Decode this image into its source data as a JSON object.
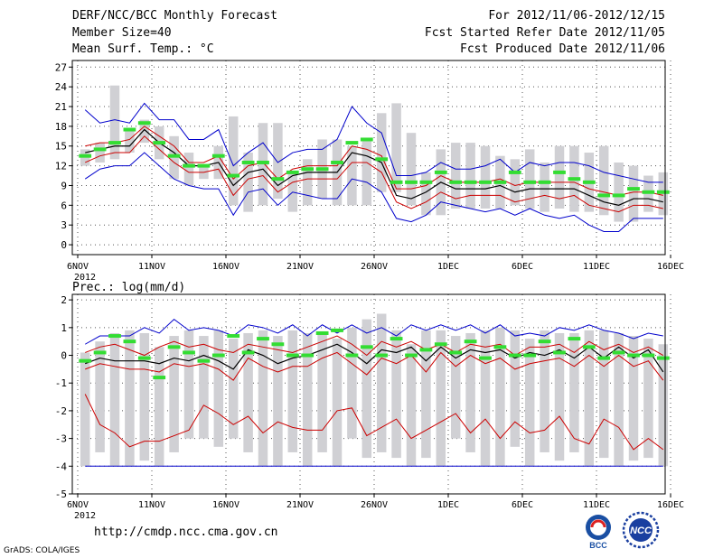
{
  "header": {
    "title": "DERF/NCC/BCC Monthly Forecast",
    "member_size": "Member Size=40",
    "variable": "Mean Surf. Temp.: °C",
    "period": "For 2012/11/06-2012/12/15",
    "started": "Fcst Started Refer Date 2012/11/05",
    "produced": "Fcst Produced Date 2012/11/06"
  },
  "footer": {
    "url": "http://cmdp.ncc.cma.gov.cn",
    "grads": "GrADS: COLA/IGES",
    "logo_bcc": "BCC",
    "logo_ncc": "NCC"
  },
  "colors": {
    "box": "#d0d0d4",
    "median": "#33dd33",
    "max_min": "#0000cc",
    "pct": "#cc0000",
    "mean": "#000000",
    "grid": "#555555"
  },
  "chart_data": [
    {
      "type": "box-line",
      "title": "Mean Surf. Temp.: °C",
      "x_ticks": [
        "6NOV",
        "11NOV",
        "16NOV",
        "21NOV",
        "26NOV",
        "1DEC",
        "6DEC",
        "11DEC",
        "16DEC"
      ],
      "x_year": "2012",
      "ylim": [
        -1.5,
        28
      ],
      "yticks": [
        0,
        3,
        6,
        9,
        12,
        15,
        18,
        21,
        24,
        27
      ],
      "days": 40,
      "box_top": [
        14.5,
        15.5,
        24.2,
        17.5,
        19,
        18,
        16.5,
        14,
        12,
        15,
        19.5,
        14,
        18.5,
        18.5,
        11,
        13,
        16,
        16,
        15,
        16,
        20,
        21.5,
        17,
        11,
        14.5,
        15.5,
        15.5,
        15,
        13.5,
        13,
        14.5,
        12.5,
        15,
        15,
        14,
        15,
        12.5,
        12,
        10.5,
        11
      ],
      "box_bot": [
        12,
        12.5,
        13,
        14,
        15.5,
        13,
        10,
        9,
        10,
        10,
        6,
        5,
        6,
        7,
        5,
        6,
        7,
        6,
        6,
        6,
        8,
        8,
        6,
        4.5,
        4.5,
        5.5,
        5.5,
        5.5,
        5.5,
        6,
        5.5,
        5,
        5.5,
        5,
        5,
        4.5,
        3.5,
        3.5,
        5,
        4.5
      ],
      "median": [
        13.5,
        14.5,
        15.5,
        17.5,
        18.5,
        15.5,
        13.5,
        12,
        12,
        13.5,
        10.5,
        12.5,
        12.5,
        10,
        11,
        11.5,
        11.5,
        12.5,
        15.5,
        16,
        13,
        9.5,
        9.5,
        9.5,
        11,
        9.5,
        9.5,
        9.5,
        9.5,
        11,
        9.5,
        9.5,
        11,
        10,
        9.5,
        7.5,
        7.5,
        8.5,
        8,
        8
      ],
      "max": [
        20.5,
        18.5,
        19,
        18.5,
        21.5,
        19,
        19,
        16,
        16,
        17.5,
        12,
        14,
        15.5,
        12.5,
        14,
        14.5,
        14.5,
        16,
        21,
        18.5,
        17,
        10.5,
        10.5,
        11,
        12.5,
        11.5,
        11.5,
        12,
        13,
        11,
        12.5,
        12,
        12.5,
        12.5,
        12,
        11,
        10.5,
        10,
        9.5,
        9.5
      ],
      "p90": [
        15,
        15.5,
        15.5,
        16,
        18,
        16.5,
        15,
        12.5,
        12.5,
        13.5,
        10,
        12,
        12.5,
        10,
        11.5,
        12,
        12,
        12,
        15,
        14.5,
        13.5,
        8.5,
        8.5,
        9,
        10.5,
        9.5,
        9.5,
        9.5,
        10,
        9,
        9.5,
        9.5,
        9.5,
        9.5,
        8.5,
        8,
        7.5,
        8,
        8,
        7.5
      ],
      "mean": [
        14,
        14.5,
        15,
        15,
        17.5,
        15.5,
        14,
        12,
        12,
        12.5,
        9,
        11,
        11.5,
        9,
        10.5,
        11,
        11,
        11,
        14,
        13.5,
        12.5,
        7.5,
        7,
        8,
        9.5,
        8.5,
        8.5,
        8.5,
        9,
        8,
        8.5,
        8.5,
        8.5,
        8.5,
        7.5,
        6.5,
        6,
        7,
        7,
        6.5
      ],
      "p10": [
        12.5,
        13.5,
        14,
        14,
        16.5,
        14.5,
        12.5,
        11,
        11,
        11.5,
        7.5,
        10,
        10.5,
        8,
        9.5,
        10,
        10,
        10,
        12.5,
        12.5,
        11,
        6.5,
        5.5,
        6.5,
        8,
        7,
        7.5,
        7.5,
        7.5,
        6.5,
        7,
        7.5,
        7,
        7.5,
        6,
        5.5,
        5,
        6,
        6,
        5.5
      ],
      "min": [
        10,
        11.5,
        12,
        12,
        14,
        12,
        10,
        9,
        8.5,
        8.5,
        4.5,
        8,
        8.5,
        6,
        8,
        7.5,
        7,
        7,
        10,
        9.5,
        8,
        4,
        3.5,
        4.5,
        6.5,
        6,
        5.5,
        5,
        5.5,
        4.5,
        5.5,
        4.5,
        4,
        4.5,
        3,
        2,
        2,
        4,
        4,
        4
      ]
    },
    {
      "type": "box-line",
      "title": "Prec.: log(mm/d)",
      "x_ticks": [
        "6NOV",
        "11NOV",
        "16NOV",
        "21NOV",
        "26NOV",
        "1DEC",
        "6DEC",
        "11DEC",
        "16DEC"
      ],
      "x_year": "2012",
      "ylim": [
        -5,
        2.2
      ],
      "yticks": [
        -5,
        -4,
        -3,
        -2,
        -1,
        0,
        1,
        2
      ],
      "days": 40,
      "box_top": [
        0.1,
        0.5,
        0.8,
        0.9,
        0.8,
        0.3,
        0.7,
        0.9,
        0.7,
        0.9,
        0.6,
        0.8,
        0.9,
        0.7,
        0.9,
        0.8,
        0.8,
        0.6,
        1.0,
        1.3,
        1.5,
        0.9,
        0.4,
        0.9,
        0.9,
        0.7,
        0.8,
        0.9,
        1.0,
        0.9,
        0.6,
        0.9,
        0.8,
        0.8,
        0.9,
        0.9,
        0.8,
        0.7,
        0.6,
        0.4
      ],
      "box_bot": [
        -4.0,
        -3.5,
        -4.0,
        -4.0,
        -3.8,
        -4.0,
        -3.5,
        -3.0,
        -3.0,
        -3.3,
        -3.0,
        -3.5,
        -4.0,
        -4.0,
        -3.5,
        -4.0,
        -3.5,
        -4.0,
        -3.0,
        -3.7,
        -3.5,
        -3.7,
        -4.0,
        -3.7,
        -4.0,
        -3.0,
        -3.5,
        -4.0,
        -4.0,
        -3.3,
        -4.0,
        -3.5,
        -3.8,
        -3.5,
        -4.0,
        -3.7,
        -4.0,
        -3.8,
        -3.7,
        -4.0
      ],
      "median": [
        -0.2,
        0.1,
        0.7,
        0.5,
        -0.1,
        -0.8,
        0.3,
        0.1,
        -0.2,
        0.0,
        0.7,
        0.1,
        0.6,
        0.4,
        0.0,
        0.0,
        0.8,
        0.9,
        0.0,
        0.3,
        0.0,
        0.6,
        0.0,
        0.2,
        0.4,
        0.1,
        0.5,
        -0.1,
        0.3,
        0.0,
        0.0,
        0.5,
        0.1,
        0.6,
        0.3,
        -0.1,
        0.1,
        0.0,
        0.0,
        -0.1
      ],
      "max": [
        0.4,
        0.7,
        0.7,
        0.7,
        1.0,
        0.8,
        1.3,
        0.9,
        1.0,
        0.9,
        0.7,
        1.1,
        1.0,
        0.8,
        1.1,
        0.7,
        1.1,
        0.8,
        1.1,
        0.8,
        1.0,
        0.7,
        1.1,
        0.9,
        1.1,
        0.9,
        1.1,
        0.8,
        1.1,
        0.7,
        0.8,
        0.7,
        1.0,
        0.9,
        1.1,
        0.9,
        0.8,
        0.6,
        0.8,
        0.7
      ],
      "p90": [
        0.1,
        0.3,
        0.4,
        0.2,
        0.0,
        0.3,
        0.5,
        0.3,
        0.4,
        0.2,
        0.1,
        0.4,
        0.3,
        0.2,
        0.1,
        0.3,
        0.5,
        0.7,
        0.4,
        0.0,
        0.5,
        0.3,
        0.5,
        0.2,
        0.4,
        0.1,
        0.4,
        0.3,
        0.4,
        0.0,
        0.3,
        0.3,
        0.4,
        0.1,
        0.5,
        0.2,
        0.4,
        0.1,
        0.3,
        0.0
      ],
      "mean": [
        -0.3,
        -0.1,
        -0.2,
        -0.2,
        -0.2,
        -0.3,
        -0.1,
        -0.2,
        0.0,
        -0.2,
        -0.5,
        0.2,
        0.0,
        -0.3,
        -0.1,
        0.0,
        0.2,
        0.4,
        0.1,
        -0.3,
        0.2,
        0.1,
        0.3,
        -0.2,
        0.3,
        -0.1,
        0.2,
        0.1,
        0.2,
        -0.1,
        0.1,
        0.0,
        0.2,
        -0.1,
        0.3,
        -0.1,
        0.3,
        -0.1,
        0.2,
        -0.6
      ],
      "p10": [
        -0.5,
        -0.3,
        -0.4,
        -0.5,
        -0.5,
        -0.6,
        -0.3,
        -0.4,
        -0.3,
        -0.5,
        -0.9,
        -0.1,
        -0.4,
        -0.6,
        -0.4,
        -0.4,
        -0.1,
        0.1,
        -0.3,
        -0.7,
        -0.1,
        -0.3,
        0.0,
        -0.6,
        0.1,
        -0.4,
        0.0,
        -0.3,
        -0.1,
        -0.5,
        -0.3,
        -0.2,
        -0.1,
        -0.4,
        0.0,
        -0.4,
        0.0,
        -0.4,
        -0.2,
        -0.9
      ],
      "p_low": [
        -1.4,
        -2.5,
        -2.8,
        -3.3,
        -3.1,
        -3.1,
        -2.9,
        -2.7,
        -1.8,
        -2.1,
        -2.5,
        -2.2,
        -2.8,
        -2.4,
        -2.6,
        -2.7,
        -2.7,
        -2.0,
        -1.9,
        -2.9,
        -2.6,
        -2.3,
        -3.0,
        -2.7,
        -2.4,
        -2.1,
        -2.8,
        -2.3,
        -3.0,
        -2.4,
        -2.8,
        -2.7,
        -2.2,
        -3.0,
        -3.2,
        -2.3,
        -2.6,
        -3.4,
        -3.0,
        -3.4
      ],
      "min": [
        -4,
        -4,
        -4,
        -4,
        -4,
        -4,
        -4,
        -4,
        -4,
        -4,
        -4,
        -4,
        -4,
        -4,
        -4,
        -4,
        -4,
        -4,
        -4,
        -4,
        -4,
        -4,
        -4,
        -4,
        -4,
        -4,
        -4,
        -4,
        -4,
        -4,
        -4,
        -4,
        -4,
        -4,
        -4,
        -4,
        -4,
        -4,
        -4,
        -4
      ]
    }
  ]
}
